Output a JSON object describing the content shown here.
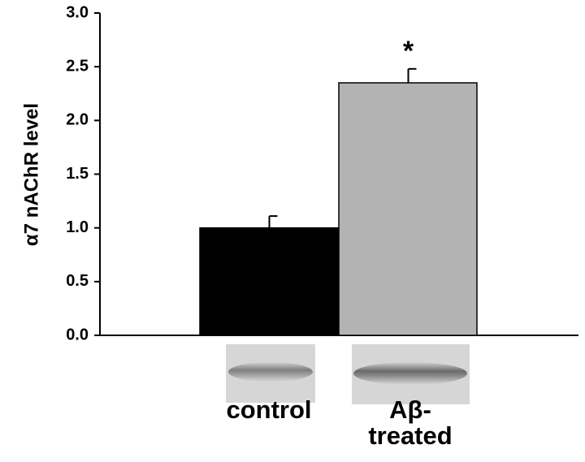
{
  "chart_data": {
    "type": "bar",
    "y_label": "α7 nAChR level",
    "categories": [
      "control",
      "Aβ-treated"
    ],
    "values": [
      1.0,
      2.35
    ],
    "errors": [
      0.11,
      0.13
    ],
    "colors": [
      "#000000",
      "#b3b3b3"
    ],
    "annotation": "*",
    "ylim": [
      0,
      3
    ],
    "yticks": [
      {
        "value": 0,
        "label": "0.0"
      },
      0.5,
      {
        "value": 1,
        "label": "1.0"
      },
      1.5,
      {
        "value": 2,
        "label": "2.0"
      },
      2.5,
      {
        "value": 3,
        "label": "3.0"
      }
    ]
  }
}
